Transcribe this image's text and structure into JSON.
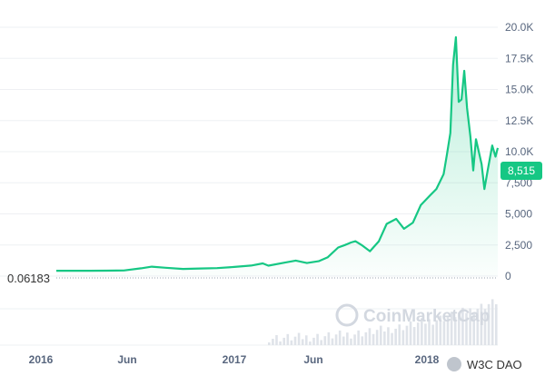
{
  "chart_data": {
    "type": "area",
    "title": "",
    "xlabel": "",
    "ylabel": "",
    "x_ticks": [
      "2016",
      "Jun",
      "2017",
      "Jun",
      "2018"
    ],
    "y_ticks": [
      "0",
      "2,500",
      "5,000",
      "7,500",
      "10.0K",
      "12.5K",
      "15.0K",
      "17.5K",
      "20.0K"
    ],
    "ylim": [
      0,
      20000
    ],
    "xlim": [
      "2016-01-01",
      "2018-03-02"
    ],
    "grid": true,
    "series": [
      {
        "color": "#16c784",
        "x": [
          "2016-01-01",
          "2016-02-01",
          "2016-03-01",
          "2016-04-01",
          "2016-05-01",
          "2016-06-01",
          "2016-06-20",
          "2016-07-15",
          "2016-08-15",
          "2016-09-15",
          "2016-10-15",
          "2016-11-15",
          "2016-12-15",
          "2017-01-05",
          "2017-01-15",
          "2017-02-15",
          "2017-03-05",
          "2017-03-25",
          "2017-04-15",
          "2017-05-01",
          "2017-05-20",
          "2017-06-01",
          "2017-06-12",
          "2017-06-20",
          "2017-07-01",
          "2017-07-16",
          "2017-08-01",
          "2017-08-15",
          "2017-09-01",
          "2017-09-15",
          "2017-10-01",
          "2017-10-15",
          "2017-11-01",
          "2017-11-12",
          "2017-11-25",
          "2017-12-01",
          "2017-12-07",
          "2017-12-12",
          "2017-12-17",
          "2017-12-22",
          "2017-12-27",
          "2018-01-01",
          "2018-01-06",
          "2018-01-12",
          "2018-01-17",
          "2018-01-22",
          "2018-02-01",
          "2018-02-06",
          "2018-02-12",
          "2018-02-20",
          "2018-02-26",
          "2018-03-02"
        ],
        "y": [
          430,
          430,
          430,
          440,
          450,
          630,
          760,
          670,
          580,
          610,
          640,
          740,
          850,
          1020,
          840,
          1100,
          1250,
          1050,
          1200,
          1500,
          2300,
          2500,
          2700,
          2800,
          2500,
          2000,
          2800,
          4200,
          4600,
          3800,
          4300,
          5700,
          6500,
          7000,
          8200,
          9800,
          11500,
          17000,
          19200,
          14000,
          14200,
          16500,
          13500,
          11200,
          8500,
          11000,
          9000,
          7000,
          8500,
          10500,
          9600,
          10300
        ]
      }
    ],
    "current_price_label": "8,515",
    "min_reference_label": "0.06183",
    "watermark": "CoinMarketCap",
    "source_tag": "W3C DAO"
  }
}
